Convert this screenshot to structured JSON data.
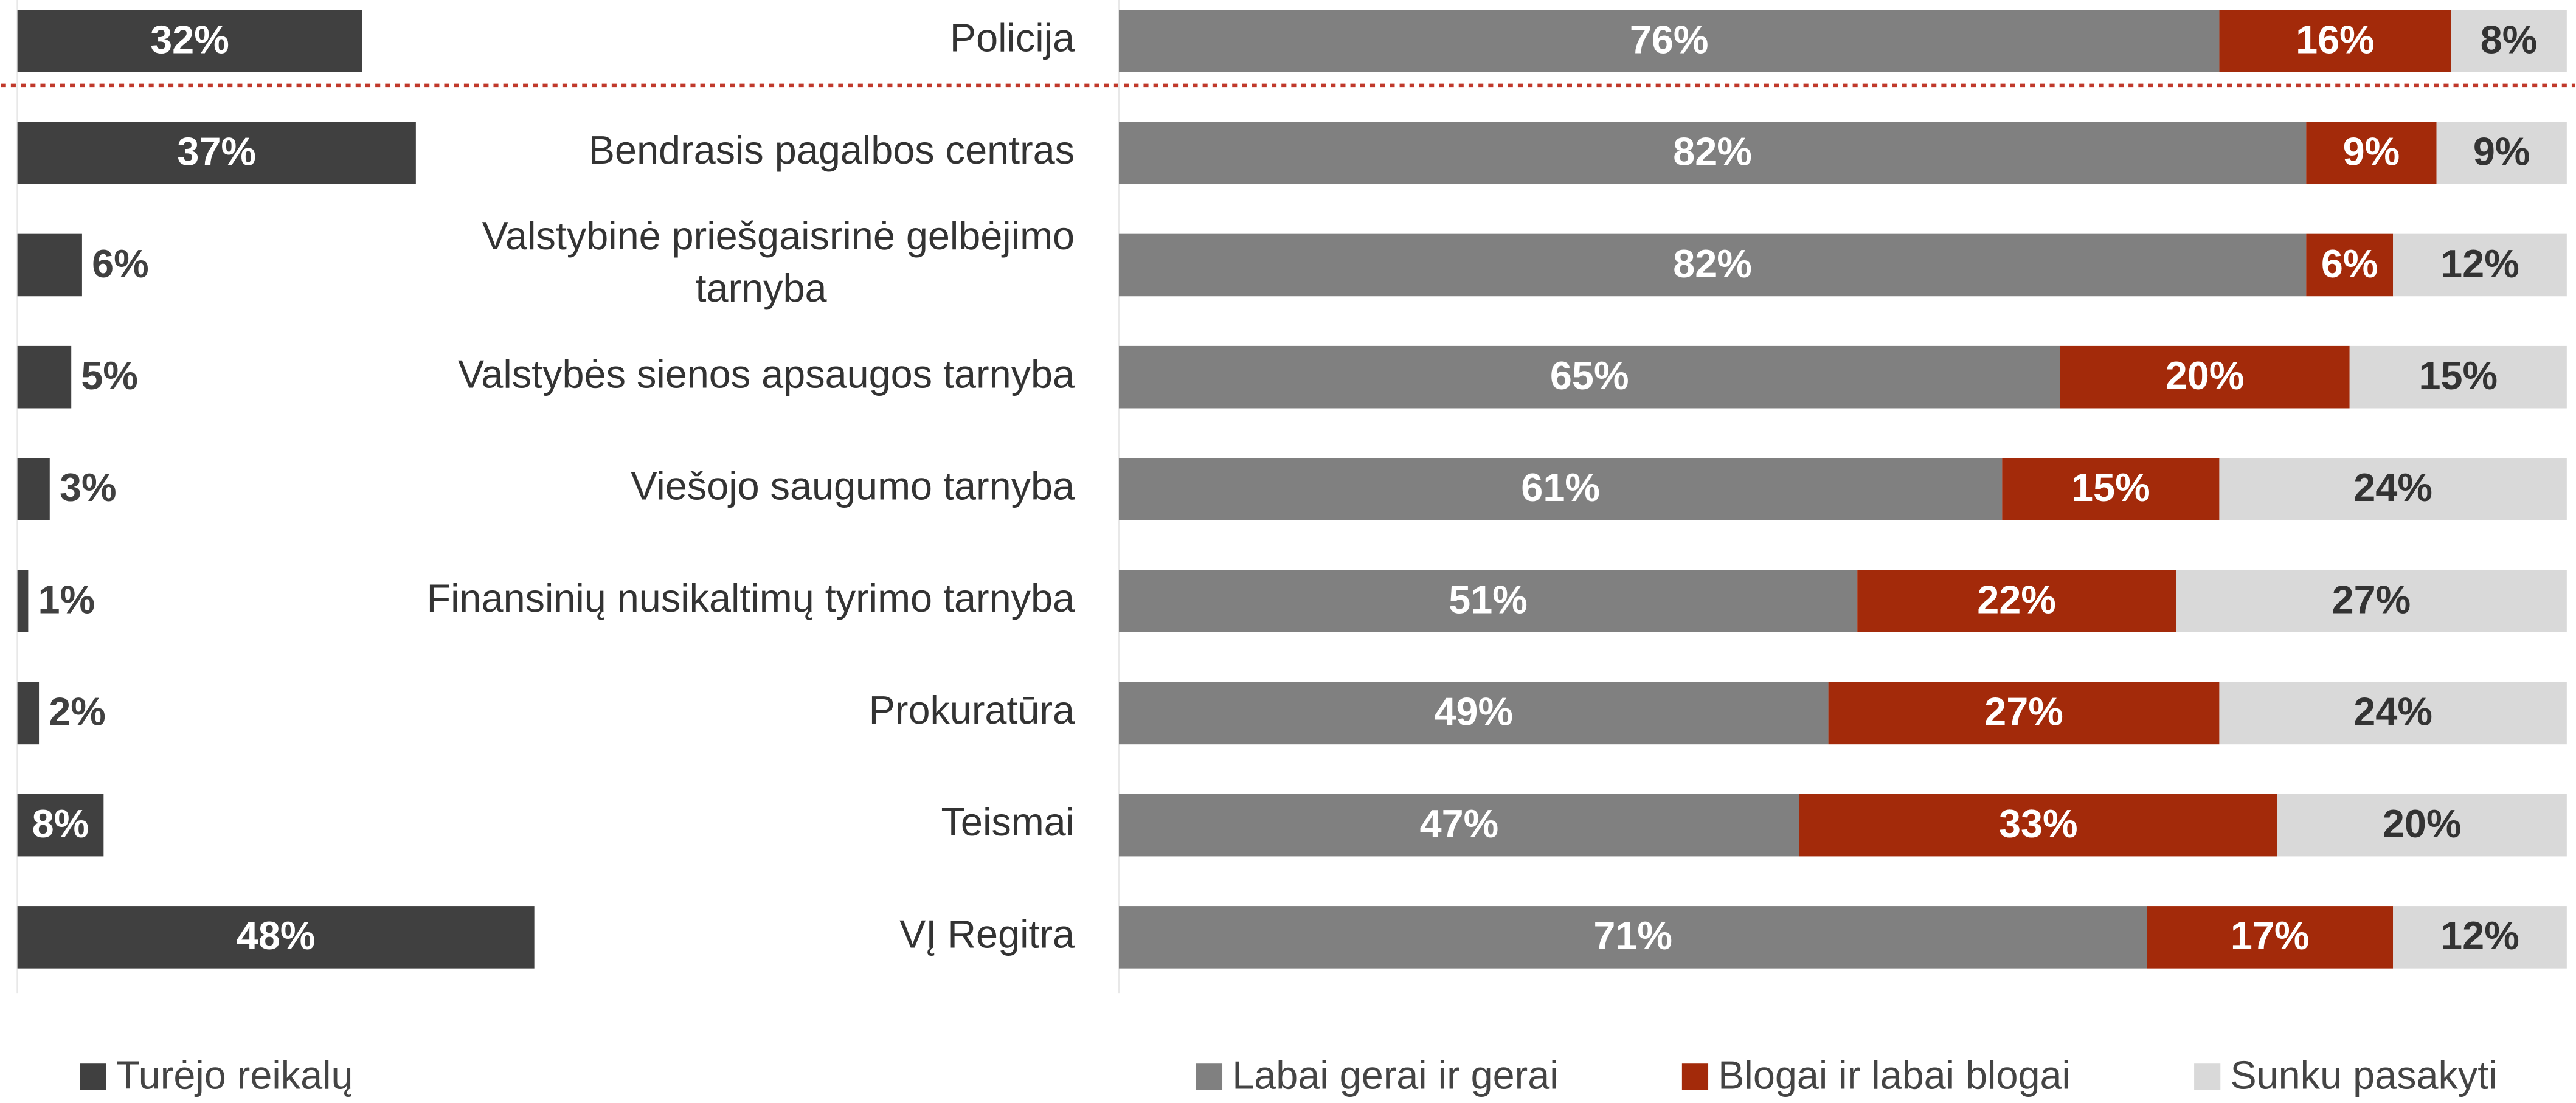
{
  "chart_data": [
    {
      "type": "bar",
      "orientation": "horizontal",
      "series": [
        {
          "name": "Turėjo reikalų",
          "color": "#404040",
          "values": [
            32,
            37,
            6,
            5,
            3,
            1,
            2,
            8,
            48
          ],
          "value_labels": [
            "32%",
            "37%",
            "6%",
            "5%",
            "3%",
            "1%",
            "2%",
            "8%",
            "48%"
          ]
        }
      ],
      "xlim": [
        0,
        100
      ]
    },
    {
      "type": "stacked_bar",
      "orientation": "horizontal",
      "categories": [
        "Policija",
        "Bendrasis pagalbos centras",
        "Valstybinė priešgaisrinė gelbėjimo tarnyba",
        "Valstybės sienos apsaugos tarnyba",
        "Viešojo saugumo tarnyba",
        "Finansinių nusikaltimų tyrimo tarnyba",
        "Prokuratūra",
        "Teismai",
        "VĮ Regitra"
      ],
      "series": [
        {
          "name": "Labai gerai ir gerai",
          "color": "#808080",
          "values": [
            76,
            82,
            82,
            65,
            61,
            51,
            49,
            47,
            71
          ],
          "value_labels": [
            "76%",
            "82%",
            "82%",
            "65%",
            "61%",
            "51%",
            "49%",
            "47%",
            "71%"
          ]
        },
        {
          "name": "Blogai ir labai blogai",
          "color": "#a32a0a",
          "values": [
            16,
            9,
            6,
            20,
            15,
            22,
            27,
            33,
            17
          ],
          "value_labels": [
            "16%",
            "9%",
            "6%",
            "20%",
            "15%",
            "22%",
            "27%",
            "33%",
            "17%"
          ]
        },
        {
          "name": "Sunku pasakyti",
          "color": "#d9d9d9",
          "values": [
            8,
            9,
            12,
            15,
            24,
            27,
            24,
            20,
            12
          ],
          "value_labels": [
            "8%",
            "9%",
            "12%",
            "15%",
            "24%",
            "27%",
            "24%",
            "20%",
            "12%"
          ]
        }
      ],
      "xlim": [
        0,
        100
      ]
    }
  ]
}
